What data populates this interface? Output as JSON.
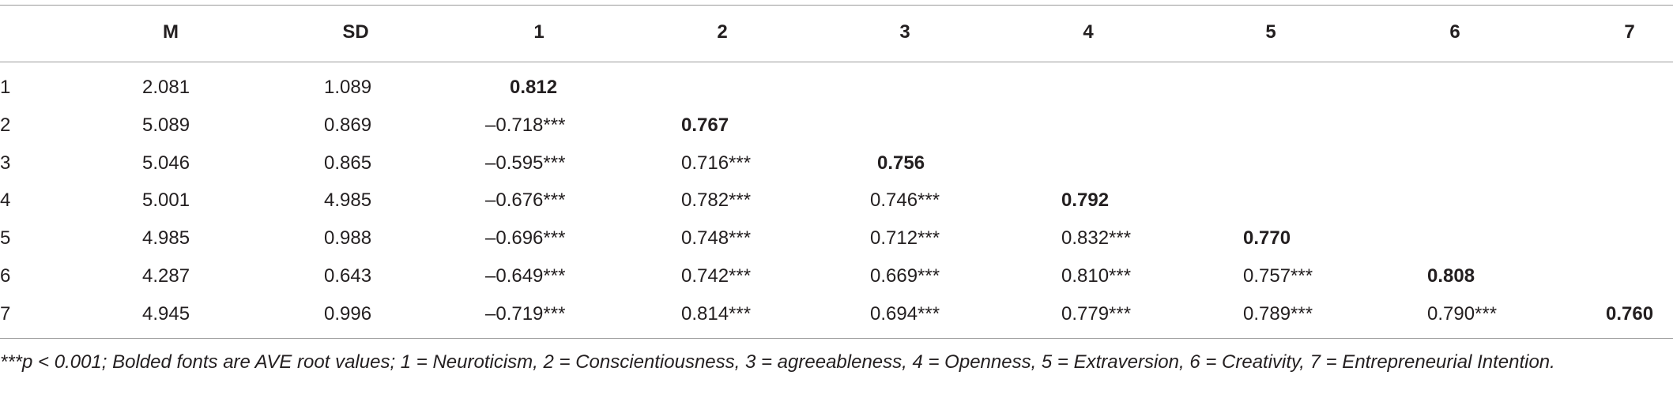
{
  "table": {
    "columns": [
      "M",
      "SD",
      "1",
      "2",
      "3",
      "4",
      "5",
      "6",
      "7"
    ],
    "rows": [
      [
        "1",
        "2.081",
        "1.089",
        "0.812"
      ],
      [
        "2",
        "5.089",
        "0.869",
        "–0.718***",
        "0.767"
      ],
      [
        "3",
        "5.046",
        "0.865",
        "–0.595***",
        "0.716***",
        "0.756"
      ],
      [
        "4",
        "5.001",
        "4.985",
        "–0.676***",
        "0.782***",
        "0.746***",
        "0.792"
      ],
      [
        "5",
        "4.985",
        "0.988",
        "–0.696***",
        "0.748***",
        "0.712***",
        "0.832***",
        "0.770"
      ],
      [
        "6",
        "4.287",
        "0.643",
        "–0.649***",
        "0.742***",
        "0.669***",
        "0.810***",
        "0.757***",
        "0.808"
      ],
      [
        "7",
        "4.945",
        "0.996",
        "–0.719***",
        "0.814***",
        "0.694***",
        "0.779***",
        "0.789***",
        "0.790***",
        "0.760"
      ]
    ]
  },
  "footnote": "***p < 0.001; Bolded fonts are AVE root values; 1 = Neuroticism, 2 = Conscientiousness, 3 = agreeableness, 4 = Openness, 5 = Extraversion, 6 = Creativity, 7 = Entrepreneurial Intention."
}
